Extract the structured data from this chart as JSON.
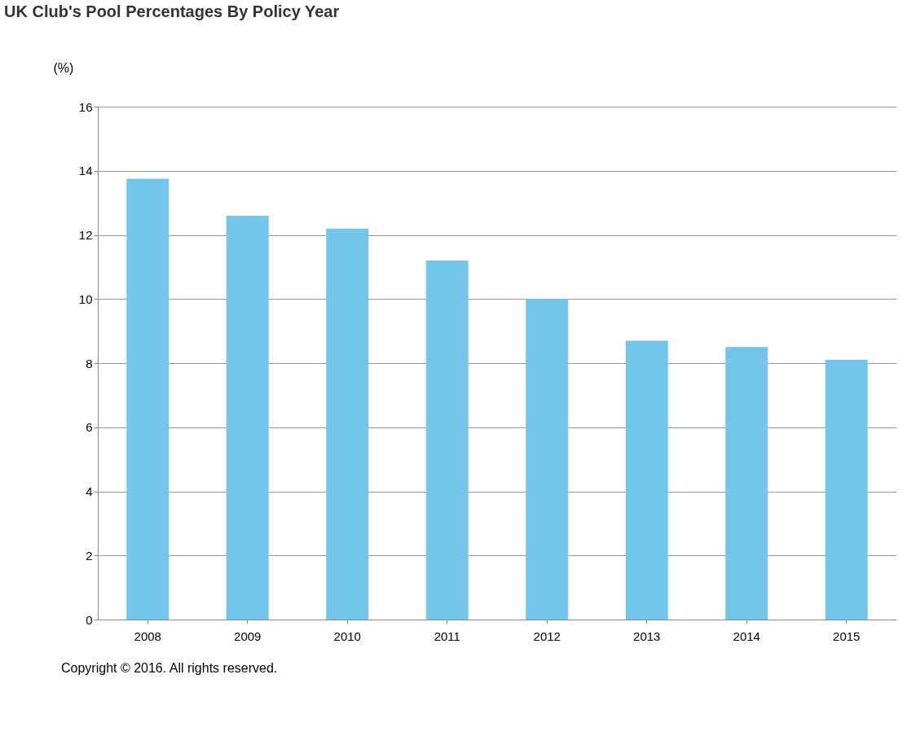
{
  "chart_data": {
    "type": "bar",
    "title": "UK Club's Pool Percentages By Policy Year",
    "ylabel": "(%)",
    "categories": [
      "2008",
      "2009",
      "2010",
      "2011",
      "2012",
      "2013",
      "2014",
      "2015"
    ],
    "values": [
      13.75,
      12.6,
      12.2,
      11.2,
      10.0,
      8.7,
      8.5,
      8.1
    ],
    "color": "#73c6ea",
    "ylim": [
      0,
      16
    ],
    "yticks": [
      0,
      2,
      4,
      6,
      8,
      10,
      12,
      14,
      16
    ],
    "grid": "y",
    "annotations": [
      "Copyright © 2016. All rights reserved."
    ]
  }
}
